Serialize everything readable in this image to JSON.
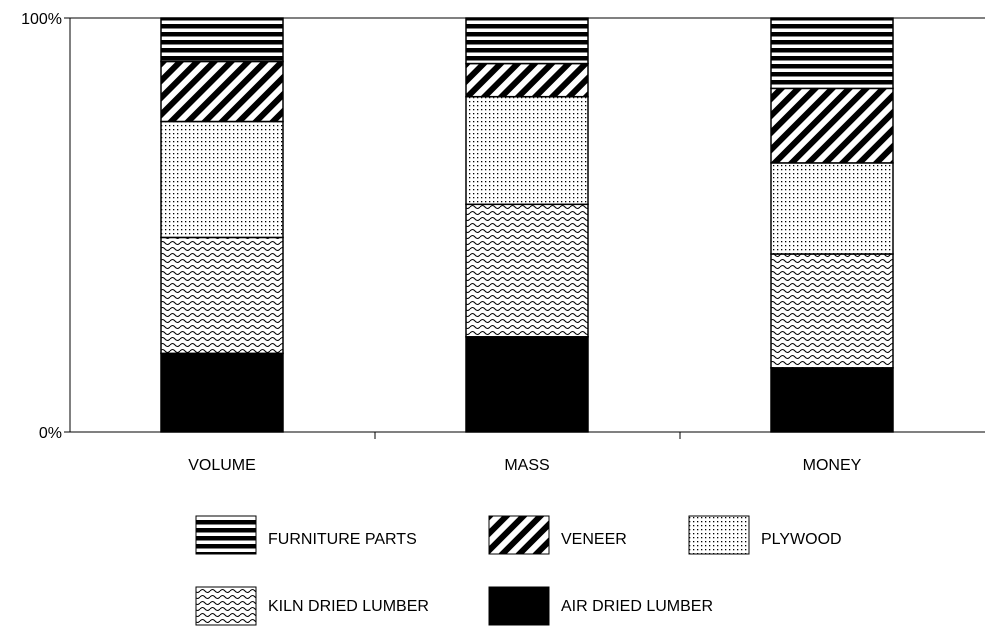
{
  "chart_data": {
    "type": "bar",
    "stacked": true,
    "normalized": true,
    "categories": [
      "VOLUME",
      "MASS",
      "MONEY"
    ],
    "y_tick_labels": [
      "0%",
      "100%"
    ],
    "ylim": [
      0,
      100
    ],
    "grid": false,
    "legend_position": "bottom",
    "series": [
      {
        "name": "AIR DRIED LUMBER",
        "pattern": "solid-black",
        "values": [
          19,
          23,
          15.5
        ]
      },
      {
        "name": "KILN DRIED LUMBER",
        "pattern": "waves",
        "values": [
          28,
          32,
          27.5
        ]
      },
      {
        "name": "PLYWOOD",
        "pattern": "dots",
        "values": [
          28,
          26,
          22
        ]
      },
      {
        "name": "VENEER",
        "pattern": "diagonal-hatch",
        "values": [
          14.5,
          8,
          18
        ]
      },
      {
        "name": "FURNITURE PARTS",
        "pattern": "horizontal-lines",
        "values": [
          10.5,
          11,
          17
        ]
      }
    ],
    "legend": [
      "FURNITURE PARTS",
      "VENEER",
      "PLYWOOD",
      "KILN DRIED LUMBER",
      "AIR DRIED LUMBER"
    ]
  }
}
